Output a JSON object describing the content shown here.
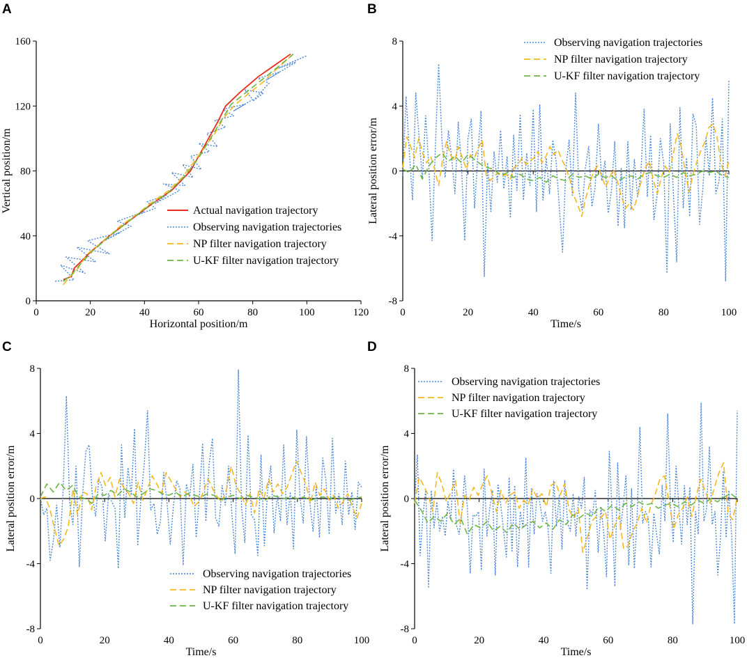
{
  "colors": {
    "actual": "#ea2a1a",
    "observing": "#4a86d6",
    "np": "#f5b71e",
    "ukf": "#6cb544",
    "axis": "#000000"
  },
  "chart_data": [
    {
      "panel": "A",
      "type": "line",
      "xlabel": "Horizontal position/m",
      "ylabel": "Vertical position/m",
      "xlim": [
        0,
        120
      ],
      "ylim": [
        0,
        160
      ],
      "xticks": [
        "0",
        "20",
        "40",
        "60",
        "80",
        "100",
        "120"
      ],
      "yticks": [
        "0",
        "40",
        "80",
        "120",
        "160"
      ],
      "legend_position": "lower-right",
      "series": [
        {
          "name": "Actual navigation trajectory",
          "style": "actual",
          "x": [
            10,
            13,
            14,
            20,
            27,
            35,
            43,
            50,
            57,
            62,
            67,
            70,
            75,
            82,
            88,
            94
          ],
          "y": [
            13,
            15,
            20,
            30,
            40,
            50,
            60,
            68,
            80,
            95,
            110,
            120,
            128,
            138,
            145,
            152
          ]
        },
        {
          "name": "Observing navigation trajectories",
          "style": "observing",
          "x": [
            7,
            14,
            9,
            18,
            11,
            22,
            15,
            27,
            19,
            31,
            24,
            35,
            30,
            40,
            36,
            44,
            41,
            48,
            44,
            53,
            47,
            55,
            50,
            58,
            54,
            61,
            57,
            64,
            60,
            67,
            63,
            70,
            66,
            73,
            69,
            77,
            73,
            80,
            77,
            84,
            80,
            86,
            82,
            90,
            85,
            96,
            89,
            100,
            93
          ],
          "y": [
            12,
            13,
            22,
            17,
            27,
            24,
            33,
            29,
            37,
            42,
            36,
            46,
            49,
            55,
            52,
            57,
            61,
            65,
            60,
            68,
            72,
            71,
            79,
            76,
            84,
            81,
            89,
            92,
            97,
            95,
            103,
            107,
            111,
            114,
            118,
            121,
            117,
            124,
            130,
            128,
            123,
            134,
            137,
            141,
            136,
            147,
            143,
            151,
            146
          ]
        },
        {
          "name": "NP filter navigation trajectory",
          "style": "np",
          "x": [
            10,
            12,
            15,
            19,
            25,
            31,
            37,
            43,
            49,
            54,
            58,
            62,
            66,
            69,
            73,
            78,
            84,
            89,
            95
          ],
          "y": [
            10,
            14,
            19,
            29,
            37,
            46,
            53,
            61,
            68,
            76,
            85,
            94,
            103,
            112,
            120,
            127,
            135,
            143,
            152
          ]
        },
        {
          "name": "U-KF filter navigation trajectory",
          "style": "ukf",
          "x": [
            10,
            13,
            16,
            21,
            28,
            35,
            42,
            49,
            55,
            60,
            64,
            68,
            72,
            78,
            84,
            90,
            95
          ],
          "y": [
            12,
            16,
            22,
            31,
            41,
            50,
            59,
            67,
            77,
            88,
            99,
            110,
            121,
            129,
            137,
            145,
            152
          ]
        }
      ]
    },
    {
      "panel": "B",
      "type": "line",
      "xlabel": "Time/s",
      "ylabel": "Lateral position error/m",
      "xlim": [
        0,
        100
      ],
      "ylim": [
        -8,
        8
      ],
      "xticks": [
        "0",
        "20",
        "40",
        "60",
        "80",
        "100"
      ],
      "yticks": [
        "-8",
        "-4",
        "0",
        "4",
        "8"
      ],
      "legend_position": "top",
      "series": [
        {
          "name": "Observing navigation trajectories",
          "style": "observing",
          "values": [
            -0.3,
            4.6,
            1.2,
            -1.8,
            4.8,
            2.1,
            -0.5,
            3.4,
            0.3,
            -4.3,
            1.5,
            6.6,
            1.9,
            -0.4,
            2.5,
            0.8,
            -1.4,
            3.0,
            0.4,
            -4.3,
            2.0,
            3.2,
            -2.3,
            0.9,
            3.7,
            -6.5,
            0.5,
            -2.5,
            1.2,
            -0.7,
            2.5,
            -1.1,
            0.9,
            -2.9,
            2.2,
            -1.2,
            3.5,
            -1.8,
            1.1,
            -0.9,
            3.8,
            -2.5,
            4.1,
            -1.8,
            0.8,
            -1.4,
            1.9,
            0.6,
            -2.2,
            -5.0,
            0.1,
            1.9,
            -1.5,
            4.8,
            -1.2,
            -2.4,
            0.2,
            1.5,
            -2.2,
            -1.0,
            2.9,
            -0.6,
            0.6,
            -2.6,
            -1.2,
            1.8,
            -3.4,
            0.2,
            -3.5,
            1.8,
            -2.4,
            0.7,
            -1.6,
            -0.2,
            3.8,
            -1.6,
            2.2,
            -3.0,
            -1.5,
            2.0,
            0.5,
            -6.3,
            2.9,
            -1.4,
            -5.6,
            3.9,
            -2.3,
            0.8,
            -2.8,
            3.5,
            2.8,
            -3.3,
            -1.1,
            2.1,
            -0.3,
            4.5,
            -1.4,
            -0.6,
            3.2,
            -6.8,
            5.6
          ]
        },
        {
          "name": "NP filter navigation trajectory",
          "style": "np",
          "values": [
            0.2,
            2.1,
            1.5,
            0.8,
            2.0,
            1.1,
            0.5,
            0.9,
            0.1,
            -0.9,
            0.7,
            1.8,
            1.0,
            0.6,
            1.5,
            0.8,
            0.1,
            1.0,
            0.8,
            1.4,
            1.9,
            -0.3,
            -0.6,
            -0.3,
            -0.1,
            -0.3,
            -0.2,
            -0.5,
            0.2,
            0.4,
            0.8,
            0.4,
            0.6,
            0.8,
            1.2,
            0.5,
            0.9,
            1.5,
            1.0,
            1.3,
            0.7,
            0.2,
            -0.5,
            -1.5,
            -2.1,
            -2.8,
            -1.7,
            -0.8,
            0.0,
            0.3,
            -0.3,
            -1.0,
            -0.4,
            0.1,
            -0.7,
            -1.6,
            -2.3,
            -2.0,
            -2.4,
            -1.6,
            -0.6,
            0.2,
            0.6,
            -0.6,
            -1.4,
            -0.4,
            0.3,
            -0.1,
            1.0,
            2.3,
            1.5,
            0.0,
            -1.3,
            -0.2,
            0.6,
            1.3,
            1.8,
            2.7,
            2.9,
            2.1,
            0.5,
            -0.3,
            0.6
          ]
        },
        {
          "name": "U-KF filter navigation trajectory",
          "style": "ukf",
          "values": [
            0.1,
            -0.1,
            0.4,
            -0.5,
            0.3,
            0.8,
            1.1,
            0.6,
            0.9,
            0.5,
            1.0,
            0.7,
            0.4,
            0.2,
            0.1,
            -0.3,
            -0.1,
            -0.4,
            -0.2,
            -0.5,
            -0.6,
            -0.4,
            -0.7,
            -0.3,
            -0.5,
            -0.6,
            -0.2,
            -0.4,
            -0.3,
            -0.5,
            -0.2,
            -0.4,
            -0.3,
            -0.6,
            -0.4,
            -0.3,
            -0.5,
            -0.2,
            -0.1,
            -0.3,
            -0.4,
            -0.2,
            -0.4,
            -0.1,
            -0.3,
            -0.2,
            0.0,
            -0.1,
            0.0,
            -0.3,
            -0.4
          ]
        }
      ]
    },
    {
      "panel": "C",
      "type": "line",
      "xlabel": "Time/s",
      "ylabel": "Lateral position error/m",
      "xlim": [
        0,
        100
      ],
      "ylim": [
        -8,
        8
      ],
      "xticks": [
        "0",
        "20",
        "40",
        "60",
        "80",
        "100"
      ],
      "yticks": [
        "-8",
        "-4",
        "0",
        "4",
        "8"
      ],
      "legend_position": "bottom-right",
      "series": [
        {
          "name": "Observing navigation trajectories",
          "style": "observing",
          "values": [
            0.0,
            -1.0,
            -0.6,
            -3.8,
            -2.6,
            -0.4,
            -3.0,
            0.5,
            6.3,
            -0.2,
            -1.6,
            2.0,
            -4.2,
            0.2,
            2.9,
            3.3,
            0.2,
            -1.1,
            1.2,
            0.7,
            -2.6,
            0.3,
            -0.2,
            -0.6,
            -4.3,
            3.3,
            -1.2,
            1.9,
            0.2,
            4.3,
            -2.9,
            0.1,
            2.1,
            5.4,
            -0.7,
            -0.3,
            -2.2,
            -1.4,
            1.6,
            -0.2,
            -2.8,
            -0.4,
            1.1,
            0.6,
            -4.1,
            0.9,
            0.1,
            2.1,
            -2.4,
            0.2,
            3.4,
            -1.4,
            2.1,
            3.7,
            -1.2,
            -1.7,
            0.8,
            -0.4,
            2.0,
            -0.9,
            -3.4,
            7.9,
            -0.6,
            -2.7,
            3.9,
            -1.0,
            -1.3,
            -3.5,
            2.7,
            -2.9,
            0.5,
            2.0,
            -2.1,
            0.2,
            -1.4,
            3.3,
            -1.6,
            0.4,
            -3.1,
            4.2,
            0.1,
            -1.5,
            3.8,
            -0.2,
            -2.0,
            0.8,
            -2.4,
            2.5,
            1.1,
            -2.2,
            3.7,
            -0.9,
            0.3,
            -1.6,
            2.3,
            -1.0,
            0.4,
            -1.9,
            1.0,
            0.7
          ]
        },
        {
          "name": "NP filter navigation trajectory",
          "style": "np",
          "values": [
            0.0,
            0.1,
            -0.6,
            -1.8,
            -2.9,
            -2.5,
            -1.7,
            0.6,
            -1.0,
            0.4,
            0.3,
            -0.7,
            0.8,
            1.6,
            0.8,
            1.3,
            0.1,
            1.2,
            0.6,
            0.3,
            -0.3,
            1.0,
            -0.1,
            0.6,
            1.4,
            0.9,
            0.3,
            1.6,
            1.1,
            0.6,
            0.1,
            0.4,
            0.2,
            -0.5,
            -0.2,
            0.4,
            1.2,
            0.6,
            0.1,
            -0.2,
            0.6,
            2.0,
            0.8,
            0.3,
            -0.4,
            0.3,
            -0.9,
            0.6,
            0.0,
            1.2,
            0.4,
            0.9,
            0.3,
            0.7,
            1.5,
            2.3,
            1.6,
            0.9,
            -0.3,
            1.0,
            0.2,
            0.6,
            -0.1,
            0.2,
            -0.6,
            -0.2,
            0.3,
            -0.5,
            -1.2,
            -0.3
          ]
        },
        {
          "name": "U-KF filter navigation trajectory",
          "style": "ukf",
          "values": [
            0.1,
            0.9,
            0.4,
            1.0,
            0.5,
            0.8,
            0.1,
            0.0,
            -0.3,
            0.3,
            0.2,
            0.5,
            0.2,
            0.6,
            0.4,
            0.1,
            0.3,
            0.6,
            0.5,
            0.3,
            0.2,
            0.4,
            0.1,
            0.3,
            0.2,
            0.1,
            0.3,
            0.2,
            -0.1,
            0.1,
            0.2,
            0.0,
            0.2,
            0.1,
            0.0,
            -0.1,
            0.2,
            0.1,
            0.0,
            0.1,
            0.0,
            0.1,
            -0.1,
            0.0,
            0.1,
            0.0,
            0.1,
            0.0,
            -0.1,
            0.0,
            0.1
          ]
        }
      ]
    },
    {
      "panel": "D",
      "type": "line",
      "xlabel": "Time/s",
      "ylabel": "Lateral position error/m",
      "xlim": [
        0,
        100
      ],
      "ylim": [
        -8,
        8
      ],
      "xticks": [
        "0",
        "20",
        "40",
        "60",
        "80",
        "100"
      ],
      "yticks": [
        "-8",
        "-4",
        "0",
        "4",
        "8"
      ],
      "legend_position": "top-left",
      "series": [
        {
          "name": "Observing navigation trajectories",
          "style": "observing",
          "values": [
            -0.2,
            2.7,
            -3.5,
            -1.0,
            0.5,
            -5.5,
            0.5,
            -1.8,
            -0.2,
            -2.0,
            -1.1,
            -2.3,
            -0.2,
            -1.3,
            1.8,
            -1.6,
            -2.2,
            -0.8,
            1.4,
            -0.6,
            -4.6,
            -1.0,
            -1.1,
            -0.8,
            -4.4,
            1.8,
            -2.3,
            -0.6,
            0.5,
            -4.7,
            0.9,
            -0.4,
            -2.0,
            -3.6,
            1.3,
            -3.3,
            0.8,
            -4.2,
            -0.8,
            -1.8,
            2.5,
            -4.2,
            0.6,
            -2.2,
            0.3,
            -0.2,
            -1.4,
            -0.8,
            -1.9,
            -4.6,
            1.1,
            -1.7,
            0.2,
            -3.1,
            1.1,
            -1.5,
            -2.0,
            0.3,
            -2.3,
            0.1,
            -0.6,
            1.3,
            -5.6,
            -0.7,
            -1.0,
            0.5,
            -3.3,
            -0.5,
            -2.1,
            -4.8,
            2.9,
            -0.8,
            -5.4,
            2.2,
            -1.9,
            -0.4,
            1.4,
            -4.1,
            0.6,
            -4.3,
            -1.1,
            4.4,
            -1.5,
            -0.8,
            -1.2,
            -4.2,
            -0.9,
            -2.2,
            -3.4,
            0.8,
            -1.4,
            5.2,
            -0.4,
            -2.7,
            2.0,
            -0.5,
            -2.8,
            0.8,
            -1.6,
            0.7,
            -7.7,
            -0.8,
            -2.2,
            5.9,
            -1.4,
            -0.6,
            3.2,
            -1.6,
            -0.8,
            -4.7,
            -2.3,
            1.7,
            -2.4,
            0.5,
            -2.3,
            -7.7,
            5.4
          ]
        },
        {
          "name": "NP filter navigation trajectory",
          "style": "np",
          "values": [
            -0.3,
            1.3,
            0.8,
            0.2,
            -0.8,
            1.6,
            0.9,
            -0.2,
            0.4,
            1.1,
            -1.5,
            0.2,
            -0.1,
            0.7,
            0.2,
            0.9,
            1.4,
            0.3,
            -0.8,
            0.5,
            -0.3,
            0.2,
            0.4,
            -0.6,
            -0.1,
            -0.4,
            0.6,
            0.0,
            0.3,
            -0.5,
            0.8,
            1.0,
            0.2,
            0.9,
            -0.7,
            -1.2,
            -0.6,
            -3.3,
            -2.4,
            -1.4,
            -1.1,
            -1.2,
            -0.8,
            -2.5,
            -1.7,
            -1.1,
            -3.1,
            -2.9,
            -2.0,
            -1.5,
            -0.6,
            -1.5,
            -0.4,
            0.3,
            1.2,
            1.4,
            -0.2,
            -1.9,
            -1.0,
            -0.6,
            0.1,
            -1.1,
            0.2,
            1.2,
            0.4,
            -0.3,
            0.7,
            1.6,
            2.2,
            -0.9,
            -1.3,
            0.1
          ]
        },
        {
          "name": "U-KF filter navigation trajectory",
          "style": "ukf",
          "values": [
            -0.1,
            -0.7,
            -1.5,
            -1.1,
            -1.4,
            -0.9,
            -1.6,
            -1.2,
            -2.2,
            -1.6,
            -1.8,
            -1.4,
            -2.0,
            -1.7,
            -2.1,
            -1.5,
            -1.9,
            -1.6,
            -1.4,
            -1.8,
            -1.5,
            -1.9,
            -1.3,
            -1.6,
            -1.0,
            -1.2,
            -0.9,
            -1.1,
            -0.5,
            -0.8,
            -0.4,
            -0.7,
            -0.3,
            -0.5,
            -0.2,
            -0.4,
            -0.3,
            -0.6,
            -0.4,
            -0.3,
            -0.5,
            -0.2,
            -0.4,
            -0.1,
            -0.3,
            0.0,
            -0.2,
            0.1,
            0.3,
            0.0
          ]
        }
      ]
    }
  ]
}
